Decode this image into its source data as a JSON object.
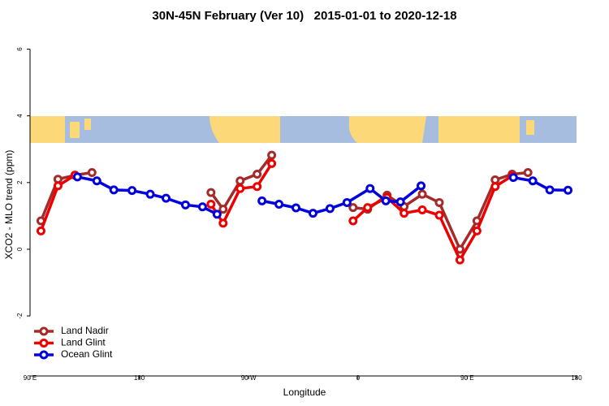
{
  "chart_data": {
    "type": "line",
    "title": "30N-45N February (Ver 10)   2015-01-01 to 2020-12-18",
    "xlabel": "Longitude",
    "ylabel": "XCO2 - MLO trend (ppm)",
    "xlim": [
      90,
      540
    ],
    "ylim": [
      -3.8,
      6.5
    ],
    "xticks": [
      {
        "value": 90,
        "label": "90 E"
      },
      180,
      {
        "value": 270,
        "label": "90 W"
      },
      {
        "value": 360,
        "label": "0"
      },
      {
        "value": 450,
        "label": "90 E"
      },
      {
        "value": 540,
        "label": "180"
      }
    ],
    "yticks": [
      -2,
      0,
      2,
      4,
      6
    ],
    "legend": "bottom-left",
    "series": [
      {
        "name": "Land Nadir",
        "color": "#a52a2a",
        "x": [
          99,
          113,
          127,
          141,
          null,
          239,
          249,
          263,
          277,
          289,
          null,
          356,
          368,
          384,
          398,
          413,
          427,
          444,
          458,
          473,
          487,
          500
        ],
        "values": [
          0.85,
          2.1,
          2.22,
          2.3,
          null,
          1.7,
          1.2,
          2.05,
          2.25,
          2.82,
          null,
          1.25,
          1.2,
          1.62,
          1.28,
          1.65,
          1.4,
          0.0,
          0.85,
          2.08,
          2.25,
          2.3
        ]
      },
      {
        "name": "Land Glint",
        "color": "#ee0000",
        "x": [
          99,
          113,
          127,
          null,
          239,
          249,
          263,
          277,
          289,
          null,
          356,
          368,
          384,
          398,
          413,
          427,
          444,
          458,
          473,
          487
        ],
        "values": [
          0.55,
          1.9,
          2.22,
          null,
          1.35,
          0.78,
          1.82,
          1.88,
          2.57,
          null,
          0.85,
          1.25,
          1.55,
          1.08,
          1.18,
          1.02,
          -0.32,
          0.55,
          1.88,
          2.2
        ]
      },
      {
        "name": "Ocean Glint",
        "color": "#0000dd",
        "x": [
          129,
          145,
          159,
          174,
          189,
          202,
          218,
          232,
          244,
          null,
          281,
          295,
          309,
          323,
          337,
          351,
          370,
          383,
          395,
          412,
          null,
          488,
          504,
          518,
          533
        ],
        "values": [
          2.17,
          2.05,
          1.78,
          1.76,
          1.65,
          1.53,
          1.33,
          1.27,
          1.05,
          null,
          1.45,
          1.35,
          1.24,
          1.08,
          1.22,
          1.4,
          1.82,
          1.45,
          1.42,
          1.9,
          null,
          2.15,
          2.05,
          1.78,
          1.77
        ]
      }
    ]
  }
}
